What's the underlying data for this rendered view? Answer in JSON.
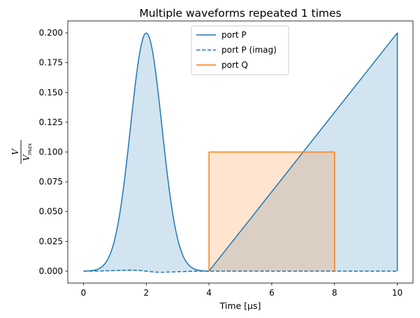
{
  "chart_data": {
    "type": "line",
    "title": "Multiple waveforms repeated 1 times",
    "xlabel": "Time [μs]",
    "ylabel": {
      "numerator": "V",
      "denominator_base": "V",
      "denominator_sub": "max"
    },
    "xlim": [
      -0.5,
      10.5
    ],
    "ylim": [
      -0.01,
      0.21
    ],
    "xticks": [
      0,
      2,
      4,
      6,
      8,
      10
    ],
    "xtick_labels": [
      "0",
      "2",
      "4",
      "6",
      "8",
      "10"
    ],
    "yticks": [
      0.0,
      0.025,
      0.05,
      0.075,
      0.1,
      0.125,
      0.15,
      0.175,
      0.2
    ],
    "ytick_labels": [
      "0.000",
      "0.025",
      "0.050",
      "0.075",
      "0.100",
      "0.125",
      "0.150",
      "0.175",
      "0.200"
    ],
    "legend_position": "top-center",
    "series": [
      {
        "name": "port P",
        "color": "#1f77b4",
        "style": "solid",
        "fill": true,
        "fill_color": "#1f77b4",
        "segments": [
          {
            "kind": "gaussian",
            "x_start": 0,
            "x_end": 4,
            "center": 2,
            "amplitude": 0.2,
            "sigma": 0.5,
            "points": 81
          },
          {
            "kind": "points",
            "x": [
              4,
              10,
              10
            ],
            "y": [
              0.0,
              0.2,
              0.0
            ]
          }
        ]
      },
      {
        "name": "port P (imag)",
        "color": "#1f77b4",
        "style": "dashed",
        "fill": false,
        "segments": [
          {
            "kind": "points",
            "x": [
              0,
              0.5,
              1.0,
              1.5,
              1.75,
              2.0,
              2.25,
              2.5,
              3.0,
              3.5,
              4.0,
              10.0
            ],
            "y": [
              0.0,
              0.0001,
              0.0005,
              0.0009,
              0.0007,
              0.0,
              -0.0007,
              -0.0009,
              -0.0005,
              -0.0001,
              0.0,
              0.0
            ]
          }
        ]
      },
      {
        "name": "port Q",
        "color": "#ff7f0e",
        "style": "solid",
        "fill": true,
        "fill_color": "#ff7f0e",
        "segments": [
          {
            "kind": "points",
            "x": [
              4,
              4,
              8,
              8
            ],
            "y": [
              0.0,
              0.1,
              0.1,
              0.0
            ]
          }
        ]
      }
    ]
  }
}
